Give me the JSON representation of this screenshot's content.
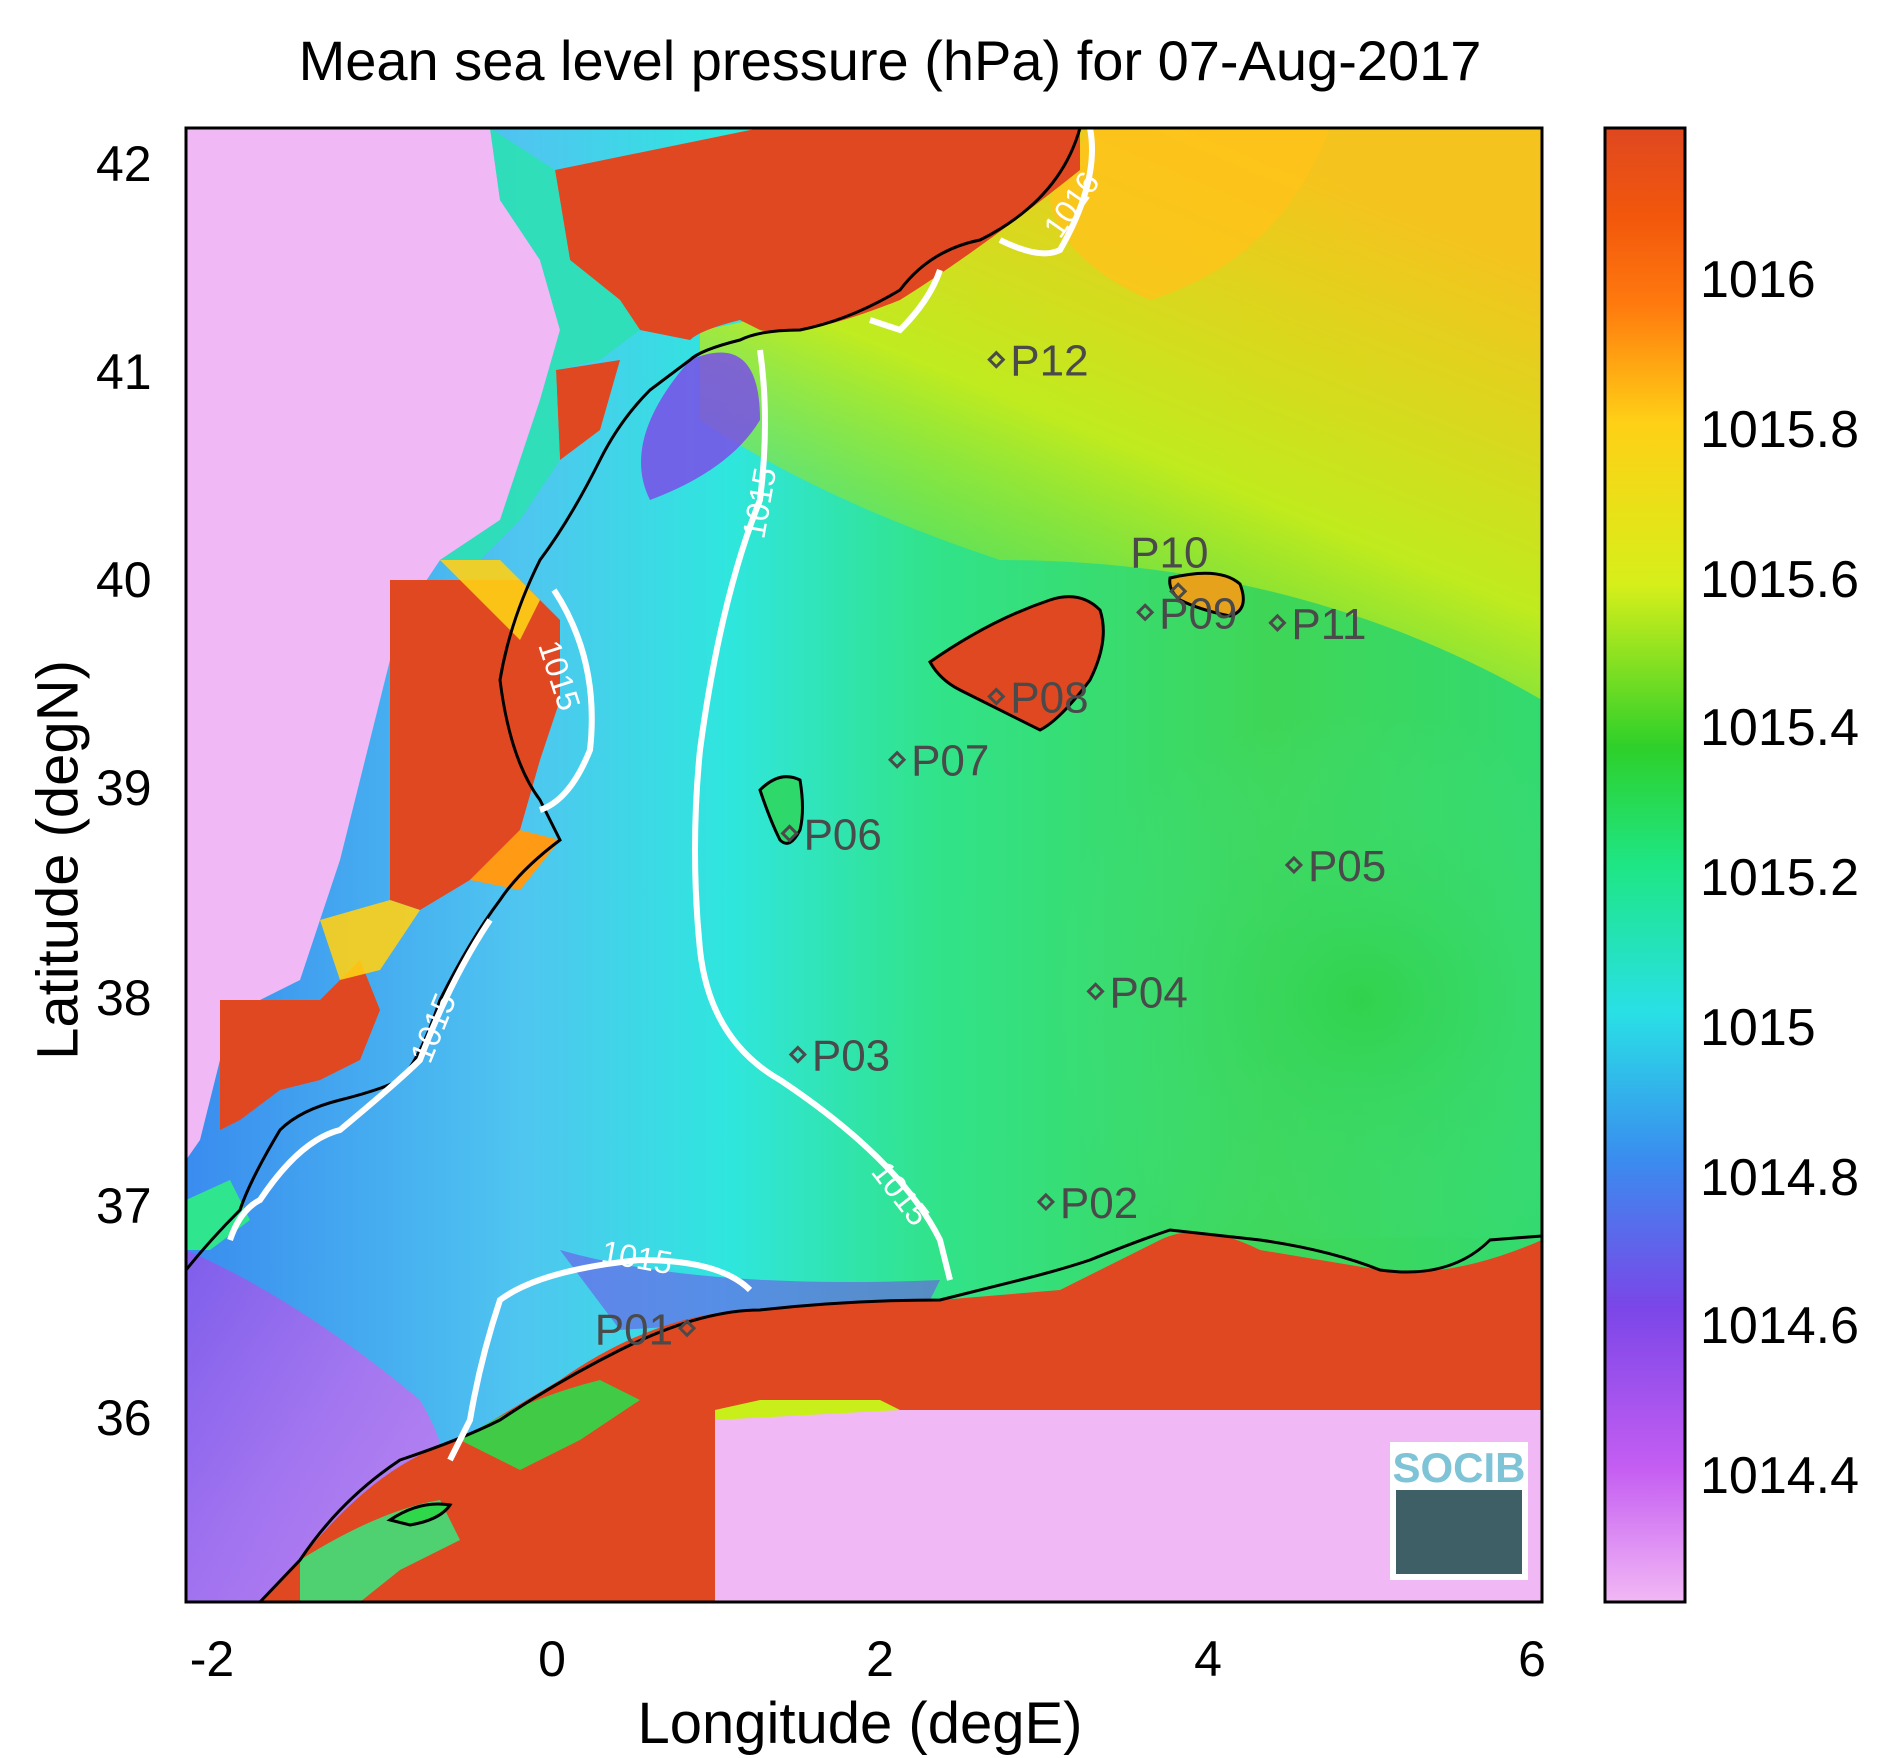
{
  "title": "Mean sea level pressure (hPa) for 07-Aug-2017",
  "xlabel": "Longitude (degE)",
  "ylabel": "Latitude (degN)",
  "x_ticks": [
    "-2",
    "0",
    "2",
    "4",
    "6"
  ],
  "y_ticks": [
    "42",
    "41",
    "40",
    "39",
    "38",
    "37",
    "36"
  ],
  "colorbar": {
    "ticks": [
      "1016",
      "1015.8",
      "1015.6",
      "1015.4",
      "1015.2",
      "1015",
      "1014.8",
      "1014.6",
      "1014.4"
    ],
    "colors": [
      "#f2b8f5",
      "#c55ef2",
      "#7b46e8",
      "#3a8cef",
      "#29e0e6",
      "#1ee685",
      "#2ed02a",
      "#d6ef1a",
      "#ffd016",
      "#ff7a0e",
      "#f2570c",
      "#df4820"
    ]
  },
  "contour_label": "1015",
  "contour_label_high": "1016",
  "logo": "SOCIB",
  "stations": [
    {
      "name": "P01",
      "lon": 0.83,
      "lat": 36.5
    },
    {
      "name": "P02",
      "lon": 3.0,
      "lat": 37.1
    },
    {
      "name": "P03",
      "lon": 1.5,
      "lat": 37.8
    },
    {
      "name": "P04",
      "lon": 3.3,
      "lat": 38.1
    },
    {
      "name": "P05",
      "lon": 4.5,
      "lat": 38.7
    },
    {
      "name": "P06",
      "lon": 1.45,
      "lat": 38.85
    },
    {
      "name": "P07",
      "lon": 2.1,
      "lat": 39.2
    },
    {
      "name": "P08",
      "lon": 2.7,
      "lat": 39.5
    },
    {
      "name": "P09",
      "lon": 3.6,
      "lat": 39.9
    },
    {
      "name": "P10",
      "lon": 3.8,
      "lat": 40.0
    },
    {
      "name": "P11",
      "lon": 4.4,
      "lat": 39.85
    },
    {
      "name": "P12",
      "lon": 2.7,
      "lat": 41.1
    }
  ],
  "chart_data": {
    "type": "heatmap",
    "title": "Mean sea level pressure (hPa) for 07-Aug-2017",
    "xlabel": "Longitude (degE)",
    "ylabel": "Latitude (degN)",
    "xlim": [
      -2.2,
      6
    ],
    "ylim": [
      35.2,
      42.2
    ],
    "color_range": [
      1014.2,
      1016.2
    ],
    "contour_levels": [
      1015,
      1016
    ]
  }
}
